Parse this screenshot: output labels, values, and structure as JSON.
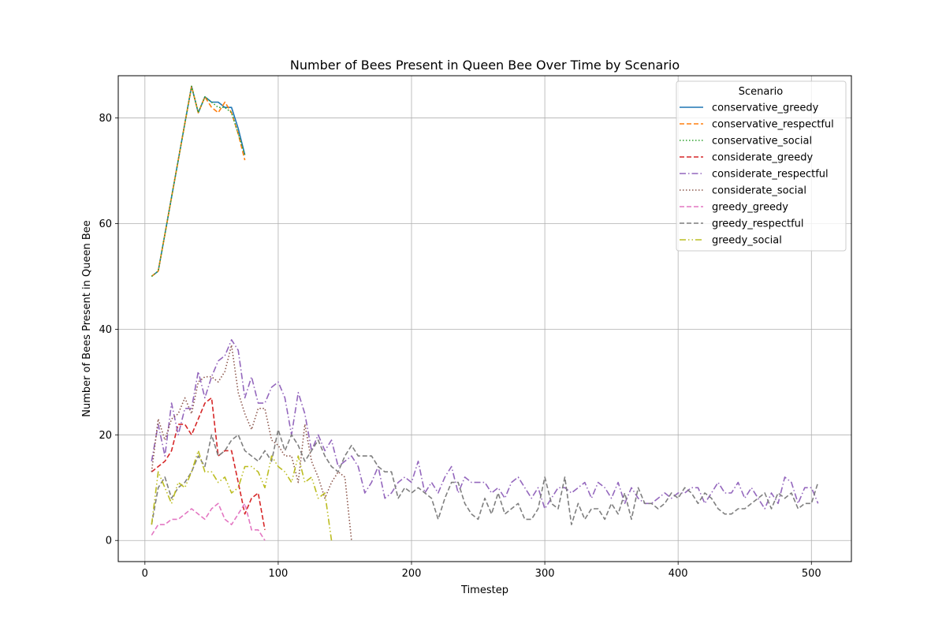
{
  "chart_data": {
    "type": "line",
    "title": "Number of Bees Present in Queen Bee Over Time by Scenario",
    "xlabel": "Timestep",
    "ylabel": "Number of Bees Present in Queen Bee",
    "xlim": [
      -20,
      530
    ],
    "ylim": [
      -4,
      88
    ],
    "xticks": [
      0,
      100,
      200,
      300,
      400,
      500
    ],
    "yticks": [
      0,
      20,
      40,
      60,
      80
    ],
    "grid": true,
    "legend": {
      "title": "Scenario",
      "placement": "top-right"
    },
    "series": [
      {
        "name": "conservative_greedy",
        "color": "#1f77b4",
        "dash": "solid",
        "x": [
          5,
          10,
          15,
          20,
          25,
          30,
          35,
          40,
          45,
          50,
          55,
          60,
          65,
          70,
          75
        ],
        "y": [
          50,
          51,
          58,
          65,
          72,
          79,
          86,
          81,
          84,
          83,
          83,
          82,
          82,
          78,
          73
        ]
      },
      {
        "name": "conservative_respectful",
        "color": "#ff7f0e",
        "dash": "dashed",
        "x": [
          5,
          10,
          15,
          20,
          25,
          30,
          35,
          40,
          45,
          50,
          55,
          60,
          65,
          70,
          75
        ],
        "y": [
          50,
          51,
          58,
          65,
          72,
          79,
          86,
          81,
          84,
          82,
          81,
          83,
          81,
          77,
          72
        ]
      },
      {
        "name": "conservative_social",
        "color": "#2ca02c",
        "dash": "dotted",
        "x": [
          5,
          10,
          15,
          20,
          25,
          30,
          35,
          40,
          45,
          50,
          55,
          60,
          65,
          70,
          75
        ],
        "y": [
          50,
          51,
          58,
          65,
          72,
          79,
          86,
          81,
          84,
          83,
          82,
          82,
          81,
          77,
          73
        ]
      },
      {
        "name": "considerate_greedy",
        "color": "#d62728",
        "dash": "dashed",
        "x": [
          5,
          10,
          15,
          20,
          25,
          30,
          35,
          40,
          45,
          50,
          55,
          60,
          65,
          70,
          75,
          80,
          85,
          90
        ],
        "y": [
          13,
          14,
          15,
          17,
          22,
          22,
          20,
          23,
          26,
          27,
          16,
          17,
          17,
          11,
          5,
          8,
          9,
          2
        ]
      },
      {
        "name": "considerate_respectful",
        "color": "#9467bd",
        "dash": "dashdot",
        "x": [
          5,
          10,
          15,
          20,
          25,
          30,
          35,
          40,
          45,
          50,
          55,
          60,
          65,
          70,
          75,
          80,
          85,
          90,
          95,
          100,
          105,
          110,
          115,
          120,
          125,
          130,
          135,
          140,
          145,
          150,
          155,
          160,
          165,
          170,
          175,
          180,
          185,
          190,
          195,
          200,
          205,
          210,
          215,
          220,
          225,
          230,
          235,
          240,
          245,
          250,
          255,
          260,
          265,
          270,
          275,
          280,
          285,
          290,
          295,
          300,
          305,
          310,
          315,
          320,
          325,
          330,
          335,
          340,
          345,
          350,
          355,
          360,
          365,
          370,
          375,
          380,
          385,
          390,
          395,
          400,
          405,
          410,
          415,
          420,
          425,
          430,
          435,
          440,
          445,
          450,
          455,
          460,
          465,
          470,
          475,
          480,
          485,
          490,
          495,
          500,
          505
        ],
        "y": [
          15,
          22,
          16,
          26,
          20,
          25,
          25,
          32,
          27,
          31,
          34,
          35,
          38,
          36,
          27,
          31,
          26,
          26,
          29,
          30,
          27,
          20,
          28,
          24,
          17,
          20,
          17,
          19,
          14,
          15,
          16,
          14,
          9,
          11,
          14,
          8,
          9,
          11,
          12,
          11,
          15,
          9,
          11,
          9,
          12,
          14,
          9,
          12,
          11,
          11,
          11,
          9,
          10,
          8,
          11,
          12,
          10,
          8,
          10,
          6,
          8,
          10,
          10,
          9,
          10,
          11,
          8,
          11,
          10,
          8,
          11,
          7,
          10,
          8,
          7,
          7,
          8,
          9,
          8,
          9,
          9,
          10,
          10,
          7,
          9,
          11,
          9,
          9,
          11,
          8,
          10,
          8,
          6,
          9,
          7,
          12,
          11,
          7,
          10,
          10,
          7
        ]
      },
      {
        "name": "considerate_social",
        "color": "#8c564b",
        "dash": "dotted",
        "x": [
          5,
          10,
          15,
          20,
          25,
          30,
          35,
          40,
          45,
          50,
          55,
          60,
          65,
          70,
          75,
          80,
          85,
          90,
          95,
          100,
          105,
          110,
          115,
          120,
          125,
          130,
          135,
          140,
          145,
          150,
          155
        ],
        "y": [
          13,
          23,
          19,
          23,
          24,
          27,
          24,
          30,
          31,
          31,
          30,
          32,
          37,
          28,
          24,
          21,
          25,
          25,
          19,
          18,
          16,
          16,
          11,
          22,
          15,
          12,
          8,
          11,
          13,
          12,
          0
        ]
      },
      {
        "name": "greedy_greedy",
        "color": "#e377c2",
        "dash": "dashed",
        "x": [
          5,
          10,
          15,
          20,
          25,
          30,
          35,
          40,
          45,
          50,
          55,
          60,
          65,
          70,
          75,
          80,
          85,
          90
        ],
        "y": [
          1,
          3,
          3,
          4,
          4,
          5,
          6,
          5,
          4,
          6,
          7,
          4,
          3,
          5,
          7,
          2,
          2,
          0
        ]
      },
      {
        "name": "greedy_respectful",
        "color": "#7f7f7f",
        "dash": "dashed",
        "x": [
          5,
          10,
          15,
          20,
          25,
          30,
          35,
          40,
          45,
          50,
          55,
          60,
          65,
          70,
          75,
          80,
          85,
          90,
          95,
          100,
          105,
          110,
          115,
          120,
          125,
          130,
          135,
          140,
          145,
          150,
          155,
          160,
          165,
          170,
          175,
          180,
          185,
          190,
          195,
          200,
          205,
          210,
          215,
          220,
          225,
          230,
          235,
          240,
          245,
          250,
          255,
          260,
          265,
          270,
          275,
          280,
          285,
          290,
          295,
          300,
          305,
          310,
          315,
          320,
          325,
          330,
          335,
          340,
          345,
          350,
          355,
          360,
          365,
          370,
          375,
          380,
          385,
          390,
          395,
          400,
          405,
          410,
          415,
          420,
          425,
          430,
          435,
          440,
          445,
          450,
          455,
          460,
          465,
          470,
          475,
          480,
          485,
          490,
          495,
          500,
          505
        ],
        "y": [
          3,
          10,
          12,
          8,
          10,
          11,
          13,
          16,
          14,
          20,
          16,
          17,
          19,
          20,
          17,
          16,
          15,
          17,
          15,
          21,
          17,
          20,
          18,
          15,
          17,
          19,
          16,
          14,
          13,
          16,
          18,
          16,
          16,
          16,
          14,
          13,
          13,
          8,
          10,
          9,
          10,
          9,
          8,
          4,
          8,
          11,
          11,
          7,
          5,
          4,
          8,
          5,
          9,
          5,
          6,
          7,
          4,
          4,
          6,
          12,
          7,
          6,
          12,
          3,
          7,
          4,
          6,
          6,
          4,
          7,
          5,
          9,
          4,
          10,
          7,
          7,
          6,
          7,
          9,
          8,
          10,
          9,
          7,
          9,
          8,
          6,
          5,
          5,
          6,
          6,
          7,
          8,
          9,
          6,
          9,
          8,
          9,
          6,
          7,
          7,
          11
        ]
      },
      {
        "name": "greedy_social",
        "color": "#bcbd22",
        "dash": "dashdotdot",
        "x": [
          5,
          10,
          15,
          20,
          25,
          30,
          35,
          40,
          45,
          50,
          55,
          60,
          65,
          70,
          75,
          80,
          85,
          90,
          95,
          100,
          105,
          110,
          115,
          120,
          125,
          130,
          135,
          140
        ],
        "y": [
          3,
          13,
          10,
          7,
          11,
          10,
          13,
          17,
          13,
          13,
          11,
          12,
          9,
          10,
          14,
          14,
          13,
          10,
          16,
          14,
          13,
          11,
          16,
          11,
          12,
          8,
          9,
          0
        ]
      }
    ]
  }
}
